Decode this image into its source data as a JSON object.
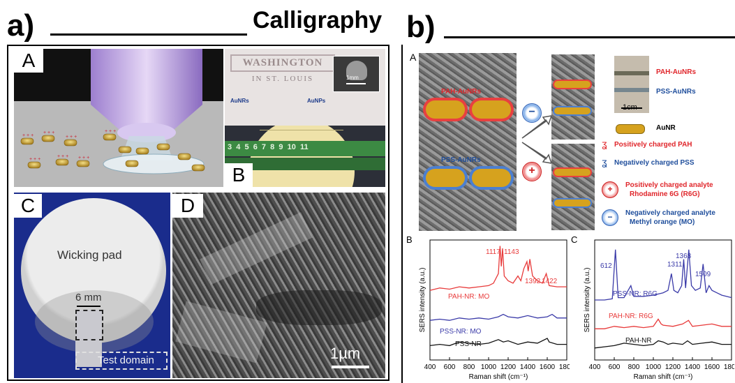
{
  "fig": {
    "label_a": "a)",
    "label_b": "b)",
    "title": "Calligraphy"
  },
  "left": {
    "A": "A",
    "B": "B",
    "C": "C",
    "D": "D",
    "washington_top": "WASHINGTON",
    "washington_bottom": "IN ST. LOUIS",
    "scale_1mm": "1mm",
    "aunrs": "AuNRs",
    "aunps": "AuNPs",
    "wicking_pad": "Wicking pad",
    "six_mm": "6 mm",
    "test_domain": "Test domain",
    "scale_1um": "1µm"
  },
  "right": {
    "A": "A",
    "pah_aunrs_sem": "PAH-AuNRs",
    "pss_aunrs_sem": "PSS-AuNRs",
    "pah_aunrs": "PAH-AuNRs",
    "pss_aunrs": "PSS-AuNRs",
    "scale_1cm": "1cm",
    "legend": [
      {
        "text": "AuNR",
        "color": "#000000"
      },
      {
        "text": "Positively charged PAH",
        "color": "#e0262b"
      },
      {
        "text": "Negatively charged PSS",
        "color": "#1f4e9c"
      },
      {
        "text": "Positively charged analyte",
        "text2": "Rhodamine 6G (R6G)",
        "color": "#e0262b"
      },
      {
        "text": "Negatively charged analyte",
        "text2": "Methyl orange (MO)",
        "color": "#1f4e9c"
      }
    ]
  },
  "chart_data": [
    {
      "type": "line",
      "panel": "B",
      "xlabel": "Raman shift (cm⁻¹)",
      "ylabel": "SERS intensity (a.u.)",
      "xlim": [
        400,
        1800
      ],
      "xticks": [
        400,
        600,
        800,
        1000,
        1200,
        1400,
        1600,
        1800
      ],
      "peak_labels": [
        "1117",
        "1143",
        "1392",
        "1422"
      ],
      "series": [
        {
          "name": "PAH-NR: MO",
          "color": "#e83a3a",
          "x": [
            400,
            500,
            600,
            700,
            800,
            900,
            1000,
            1050,
            1100,
            1117,
            1130,
            1143,
            1160,
            1200,
            1250,
            1300,
            1330,
            1360,
            1392,
            1405,
            1422,
            1450,
            1500,
            1550,
            1590,
            1620,
            1700,
            1800
          ],
          "y": [
            0.58,
            0.6,
            0.59,
            0.61,
            0.6,
            0.61,
            0.62,
            0.64,
            0.72,
            0.95,
            0.78,
            0.93,
            0.7,
            0.66,
            0.64,
            0.7,
            0.66,
            0.76,
            0.82,
            0.74,
            0.84,
            0.7,
            0.66,
            0.64,
            0.72,
            0.62,
            0.61,
            0.61
          ]
        },
        {
          "name": "PSS-NR: MO",
          "color": "#3a3aa8",
          "x": [
            400,
            500,
            600,
            700,
            800,
            900,
            1000,
            1100,
            1150,
            1200,
            1300,
            1400,
            1500,
            1600,
            1650,
            1700,
            1800
          ],
          "y": [
            0.33,
            0.34,
            0.33,
            0.35,
            0.34,
            0.35,
            0.34,
            0.36,
            0.38,
            0.36,
            0.35,
            0.37,
            0.35,
            0.36,
            0.38,
            0.35,
            0.35
          ]
        },
        {
          "name": "PSS-NR",
          "color": "#111111",
          "x": [
            400,
            500,
            600,
            700,
            800,
            900,
            1000,
            1100,
            1150,
            1200,
            1300,
            1400,
            1500,
            1600,
            1620,
            1700,
            1800
          ],
          "y": [
            0.12,
            0.13,
            0.12,
            0.15,
            0.14,
            0.13,
            0.14,
            0.17,
            0.15,
            0.16,
            0.13,
            0.15,
            0.14,
            0.18,
            0.15,
            0.13,
            0.13
          ]
        }
      ]
    },
    {
      "type": "line",
      "panel": "C",
      "xlabel": "Raman shift (cm⁻¹)",
      "ylabel": "SERS intensity (a.u.)",
      "xlim": [
        400,
        1800
      ],
      "xticks": [
        400,
        600,
        800,
        1000,
        1200,
        1400,
        1600,
        1800
      ],
      "peak_labels": [
        "612",
        "1311",
        "1363",
        "1509"
      ],
      "series": [
        {
          "name": "PSS-NR: R6G",
          "color": "#3a3aa8",
          "x": [
            400,
            500,
            580,
            612,
            640,
            700,
            770,
            800,
            900,
            1000,
            1100,
            1150,
            1185,
            1210,
            1250,
            1290,
            1311,
            1330,
            1363,
            1390,
            1430,
            1480,
            1509,
            1540,
            1570,
            1600,
            1650,
            1700,
            1800
          ],
          "y": [
            0.5,
            0.5,
            0.51,
            0.92,
            0.52,
            0.52,
            0.62,
            0.53,
            0.53,
            0.54,
            0.56,
            0.58,
            0.72,
            0.58,
            0.56,
            0.62,
            0.84,
            0.6,
            0.92,
            0.62,
            0.58,
            0.6,
            0.8,
            0.56,
            0.62,
            0.58,
            0.56,
            0.54,
            0.52
          ]
        },
        {
          "name": "PAH-NR: R6G",
          "color": "#e83a3a",
          "x": [
            400,
            500,
            600,
            700,
            800,
            900,
            1000,
            1050,
            1080,
            1100,
            1200,
            1300,
            1360,
            1400,
            1500,
            1600,
            1700,
            1800
          ],
          "y": [
            0.26,
            0.26,
            0.28,
            0.27,
            0.28,
            0.27,
            0.28,
            0.34,
            0.3,
            0.29,
            0.28,
            0.3,
            0.33,
            0.28,
            0.29,
            0.3,
            0.28,
            0.28
          ]
        },
        {
          "name": "PAH-NR",
          "color": "#111111",
          "x": [
            400,
            500,
            600,
            700,
            800,
            900,
            1000,
            1050,
            1100,
            1150,
            1200,
            1300,
            1350,
            1400,
            1500,
            1600,
            1700,
            1800
          ],
          "y": [
            0.1,
            0.11,
            0.12,
            0.14,
            0.13,
            0.12,
            0.13,
            0.16,
            0.15,
            0.13,
            0.14,
            0.13,
            0.16,
            0.13,
            0.14,
            0.15,
            0.13,
            0.13
          ]
        }
      ]
    }
  ]
}
